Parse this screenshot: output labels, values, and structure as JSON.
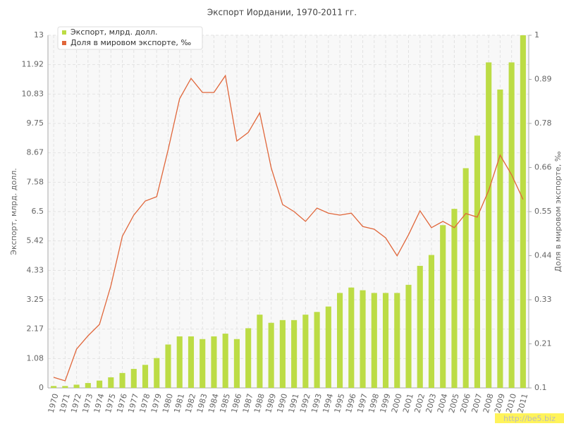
{
  "chart_data": {
    "type": "bar-line",
    "title": "Экспорт Иордании, 1970-2011 гг.",
    "y_label": "Экспорт, млрд. долл.",
    "y2_label": "Доля в мировом экспорте, ‰",
    "categories": [
      "1970",
      "1971",
      "1972",
      "1973",
      "1974",
      "1975",
      "1976",
      "1977",
      "1978",
      "1979",
      "1980",
      "1981",
      "1982",
      "1983",
      "1984",
      "1985",
      "1986",
      "1987",
      "1988",
      "1989",
      "1990",
      "1991",
      "1992",
      "1993",
      "1994",
      "1995",
      "1996",
      "1997",
      "1998",
      "1999",
      "2000",
      "2001",
      "2002",
      "2003",
      "2004",
      "2005",
      "2006",
      "2007",
      "2008",
      "2009",
      "2010",
      "2011"
    ],
    "series": [
      {
        "name": "Экспорт, млрд. долл.",
        "color": "#bcdc45",
        "kind": "bar",
        "values": [
          0.07,
          0.07,
          0.12,
          0.18,
          0.27,
          0.39,
          0.55,
          0.7,
          0.85,
          1.1,
          1.6,
          1.9,
          1.9,
          1.8,
          1.9,
          2.0,
          1.8,
          2.2,
          2.7,
          2.4,
          2.5,
          2.5,
          2.7,
          2.8,
          3.0,
          3.5,
          3.7,
          3.6,
          3.5,
          3.5,
          3.5,
          3.8,
          4.5,
          4.9,
          6.0,
          6.6,
          8.1,
          9.3,
          12.0,
          11.0,
          12.0,
          13.0
        ]
      },
      {
        "name": "Доля в мировом экспорте, ‰",
        "color": "#e0663a",
        "kind": "line",
        "axis": "y2",
        "values": [
          0.127,
          0.118,
          0.199,
          0.233,
          0.262,
          0.361,
          0.487,
          0.541,
          0.577,
          0.588,
          0.708,
          0.838,
          0.89,
          0.854,
          0.854,
          0.897,
          0.73,
          0.752,
          0.802,
          0.662,
          0.568,
          0.55,
          0.525,
          0.559,
          0.546,
          0.541,
          0.546,
          0.512,
          0.505,
          0.483,
          0.437,
          0.491,
          0.552,
          0.509,
          0.525,
          0.509,
          0.545,
          0.536,
          0.604,
          0.694,
          0.644,
          0.581
        ]
      }
    ],
    "ylim": [
      0,
      13
    ],
    "yticks": [
      0,
      {
        "value": 1.0833,
        "label": "1.08"
      },
      {
        "value": 2.1667,
        "label": "2.17"
      },
      3.25,
      {
        "value": 4.3333,
        "label": "4.33"
      },
      {
        "value": 5.4167,
        "label": "5.42"
      },
      6.5,
      {
        "value": 7.5833,
        "label": "7.58"
      },
      {
        "value": 8.6667,
        "label": "8.67"
      },
      9.75,
      {
        "value": 10.8333,
        "label": "10.83"
      },
      {
        "value": 11.9167,
        "label": "11.92"
      },
      13
    ],
    "y2lim": [
      0.1,
      1
    ],
    "y2ticks": [
      0.1,
      {
        "value": 0.2125,
        "label": "0.21"
      },
      {
        "value": 0.325,
        "label": "0.33"
      },
      {
        "value": 0.4375,
        "label": "0.44"
      },
      0.55,
      {
        "value": 0.6625,
        "label": "0.66"
      },
      {
        "value": 0.775,
        "label": "0.78"
      },
      {
        "value": 0.8875,
        "label": "0.89"
      },
      1
    ],
    "grid": true,
    "legend": "top-left",
    "watermark": "http://be5.biz"
  }
}
